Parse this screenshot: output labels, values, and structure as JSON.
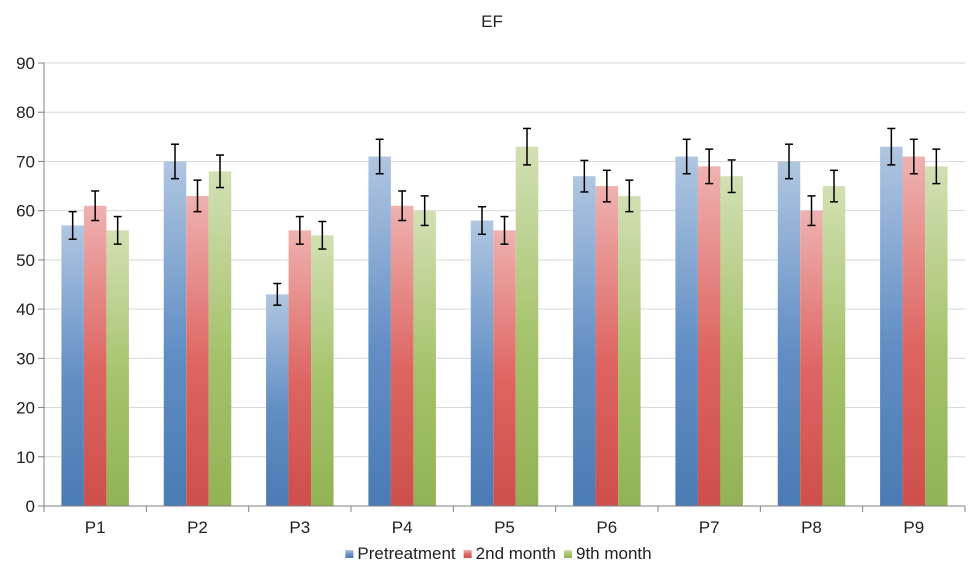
{
  "chart_data": {
    "type": "bar",
    "title": "EF",
    "xlabel": "",
    "ylabel": "",
    "categories": [
      "P1",
      "P2",
      "P3",
      "P4",
      "P5",
      "P6",
      "P7",
      "P8",
      "P9"
    ],
    "ylim": [
      0,
      90
    ],
    "yticks": [
      0,
      10,
      20,
      30,
      40,
      50,
      60,
      70,
      80,
      90
    ],
    "grid": true,
    "legend_position": "bottom",
    "series": [
      {
        "name": "Pretreatment",
        "color": "#4f81bd",
        "values": [
          57,
          70,
          43,
          71,
          58,
          67,
          71,
          70,
          73
        ],
        "error": [
          2.8,
          3.5,
          2.2,
          3.5,
          2.8,
          3.2,
          3.5,
          3.5,
          3.7
        ]
      },
      {
        "name": "2nd month",
        "color": "#d9534f",
        "values": [
          61,
          63,
          56,
          61,
          56,
          65,
          69,
          60,
          71
        ],
        "error": [
          3.0,
          3.2,
          2.8,
          3.0,
          2.8,
          3.2,
          3.5,
          3.0,
          3.5
        ]
      },
      {
        "name": "9th month",
        "color": "#9bbb59",
        "values": [
          56,
          68,
          55,
          60,
          73,
          63,
          67,
          65,
          69
        ],
        "error": [
          2.8,
          3.3,
          2.8,
          3.0,
          3.7,
          3.2,
          3.3,
          3.2,
          3.5
        ]
      }
    ]
  }
}
